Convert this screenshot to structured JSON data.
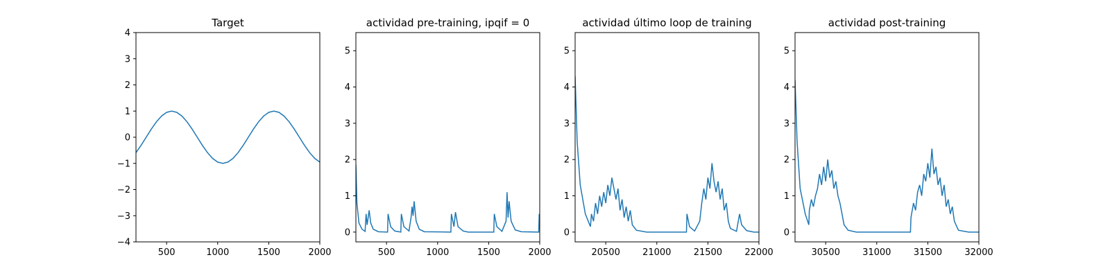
{
  "chart_data": [
    {
      "type": "line",
      "title": "Target",
      "color": "#1f77b4",
      "x": [
        200,
        250,
        300,
        350,
        400,
        450,
        500,
        550,
        600,
        650,
        700,
        750,
        800,
        850,
        900,
        950,
        1000,
        1050,
        1100,
        1150,
        1200,
        1250,
        1300,
        1350,
        1400,
        1450,
        1500,
        1550,
        1600,
        1650,
        1700,
        1750,
        1800,
        1850,
        1900,
        1950,
        2000
      ],
      "values": [
        -0.588,
        -0.309,
        0,
        0.309,
        0.588,
        0.809,
        0.951,
        1,
        0.951,
        0.809,
        0.588,
        0.309,
        0,
        -0.309,
        -0.588,
        -0.809,
        -0.951,
        -1,
        -0.951,
        -0.809,
        -0.588,
        -0.309,
        0,
        0.309,
        0.588,
        0.809,
        0.951,
        1,
        0.951,
        0.809,
        0.588,
        0.309,
        0,
        -0.309,
        -0.588,
        -0.809,
        -0.951
      ],
      "xlim": [
        200,
        2000
      ],
      "xticks": [
        500,
        1000,
        1500,
        2000
      ],
      "ylim": [
        -4,
        4
      ],
      "yticks": [
        {
          "value": -4,
          "label": "−4"
        },
        {
          "value": -3,
          "label": "−3"
        },
        {
          "value": -2,
          "label": "−2"
        },
        {
          "value": -1,
          "label": "−1"
        },
        0,
        1,
        2,
        3,
        4
      ]
    },
    {
      "type": "line",
      "title": "actividad pre-training, ipqif = 0",
      "color": "#1f77b4",
      "x": [
        200,
        210,
        230,
        260,
        290,
        300,
        310,
        330,
        345,
        370,
        420,
        510,
        515,
        540,
        580,
        640,
        645,
        670,
        720,
        740,
        750,
        760,
        770,
        790,
        820,
        870,
        1130,
        1135,
        1160,
        1175,
        1200,
        1250,
        1300,
        1550,
        1555,
        1580,
        1630,
        1670,
        1680,
        1690,
        1700,
        1720,
        1760,
        1820,
        1990,
        1995,
        2000
      ],
      "values": [
        1.85,
        0.8,
        0.25,
        0.08,
        0.02,
        0.5,
        0.2,
        0.6,
        0.25,
        0.08,
        0.01,
        0,
        0.5,
        0.15,
        0.03,
        0,
        0.5,
        0.15,
        0.03,
        0.4,
        0.7,
        0.45,
        0.85,
        0.3,
        0.08,
        0.01,
        0,
        0.5,
        0.15,
        0.55,
        0.15,
        0.03,
        0,
        0,
        0.5,
        0.15,
        0.02,
        0.3,
        1.1,
        0.4,
        0.85,
        0.3,
        0.06,
        0.01,
        0,
        0.5,
        0.3
      ],
      "xlim": [
        200,
        2000
      ],
      "xticks": [
        500,
        1000,
        1500,
        2000
      ],
      "ylim": [
        -0.27,
        5.5
      ],
      "yticks": [
        0,
        1,
        2,
        3,
        4,
        5
      ]
    },
    {
      "type": "line",
      "title": "actividad último loop de training",
      "color": "#1f77b4",
      "x": [
        20200,
        20220,
        20250,
        20300,
        20350,
        20360,
        20380,
        20400,
        20420,
        20440,
        20460,
        20480,
        20500,
        20520,
        20540,
        20560,
        20580,
        20600,
        20620,
        20640,
        20660,
        20680,
        20700,
        20720,
        20740,
        20760,
        20800,
        20900,
        21290,
        21295,
        21320,
        21370,
        21420,
        21440,
        21460,
        21480,
        21500,
        21520,
        21540,
        21560,
        21580,
        21600,
        21620,
        21640,
        21660,
        21680,
        21700,
        21720,
        21780,
        21810,
        21830,
        21880,
        21950,
        22000
      ],
      "values": [
        4.3,
        2.5,
        1.3,
        0.5,
        0.15,
        0.5,
        0.3,
        0.8,
        0.5,
        1.0,
        0.7,
        1.1,
        0.8,
        1.3,
        1.0,
        1.5,
        1.2,
        0.9,
        1.2,
        0.6,
        0.9,
        0.4,
        0.7,
        0.3,
        0.6,
        0.2,
        0.05,
        0,
        0,
        0.5,
        0.15,
        0.03,
        0.3,
        0.8,
        1.2,
        0.9,
        1.5,
        1.2,
        1.9,
        1.4,
        1.1,
        1.4,
        0.9,
        1.2,
        0.6,
        0.8,
        0.3,
        0.1,
        0.02,
        0.5,
        0.2,
        0.04,
        0,
        0
      ],
      "xlim": [
        20200,
        22000
      ],
      "xticks": [
        20500,
        21000,
        21500,
        22000
      ],
      "ylim": [
        -0.27,
        5.5
      ],
      "yticks": [
        0,
        1,
        2,
        3,
        4,
        5
      ]
    },
    {
      "type": "line",
      "title": "actividad post-training",
      "color": "#1f77b4",
      "x": [
        30200,
        30220,
        30250,
        30300,
        30335,
        30340,
        30360,
        30380,
        30400,
        30420,
        30440,
        30460,
        30480,
        30500,
        30520,
        30540,
        30560,
        30580,
        30600,
        30620,
        30640,
        30660,
        30680,
        30720,
        30800,
        31330,
        31335,
        31360,
        31380,
        31400,
        31420,
        31440,
        31460,
        31480,
        31500,
        31520,
        31540,
        31560,
        31580,
        31600,
        31620,
        31640,
        31660,
        31680,
        31700,
        31720,
        31740,
        31760,
        31800,
        31900,
        32000
      ],
      "values": [
        4.2,
        2.5,
        1.2,
        0.5,
        0.2,
        0.6,
        0.9,
        0.7,
        1.0,
        1.2,
        1.6,
        1.3,
        1.8,
        1.4,
        2.0,
        1.5,
        1.7,
        1.2,
        1.4,
        1.0,
        0.8,
        0.5,
        0.2,
        0.05,
        0,
        0,
        0.4,
        0.8,
        0.6,
        1.1,
        1.3,
        1.0,
        1.6,
        1.4,
        1.9,
        1.5,
        2.3,
        1.6,
        1.8,
        1.3,
        1.5,
        1.0,
        1.3,
        0.7,
        0.9,
        0.5,
        0.7,
        0.3,
        0.05,
        0,
        0
      ],
      "xlim": [
        30200,
        32000
      ],
      "xticks": [
        30500,
        31000,
        31500,
        32000
      ],
      "ylim": [
        -0.27,
        5.5
      ],
      "yticks": [
        0,
        1,
        2,
        3,
        4,
        5
      ]
    }
  ]
}
